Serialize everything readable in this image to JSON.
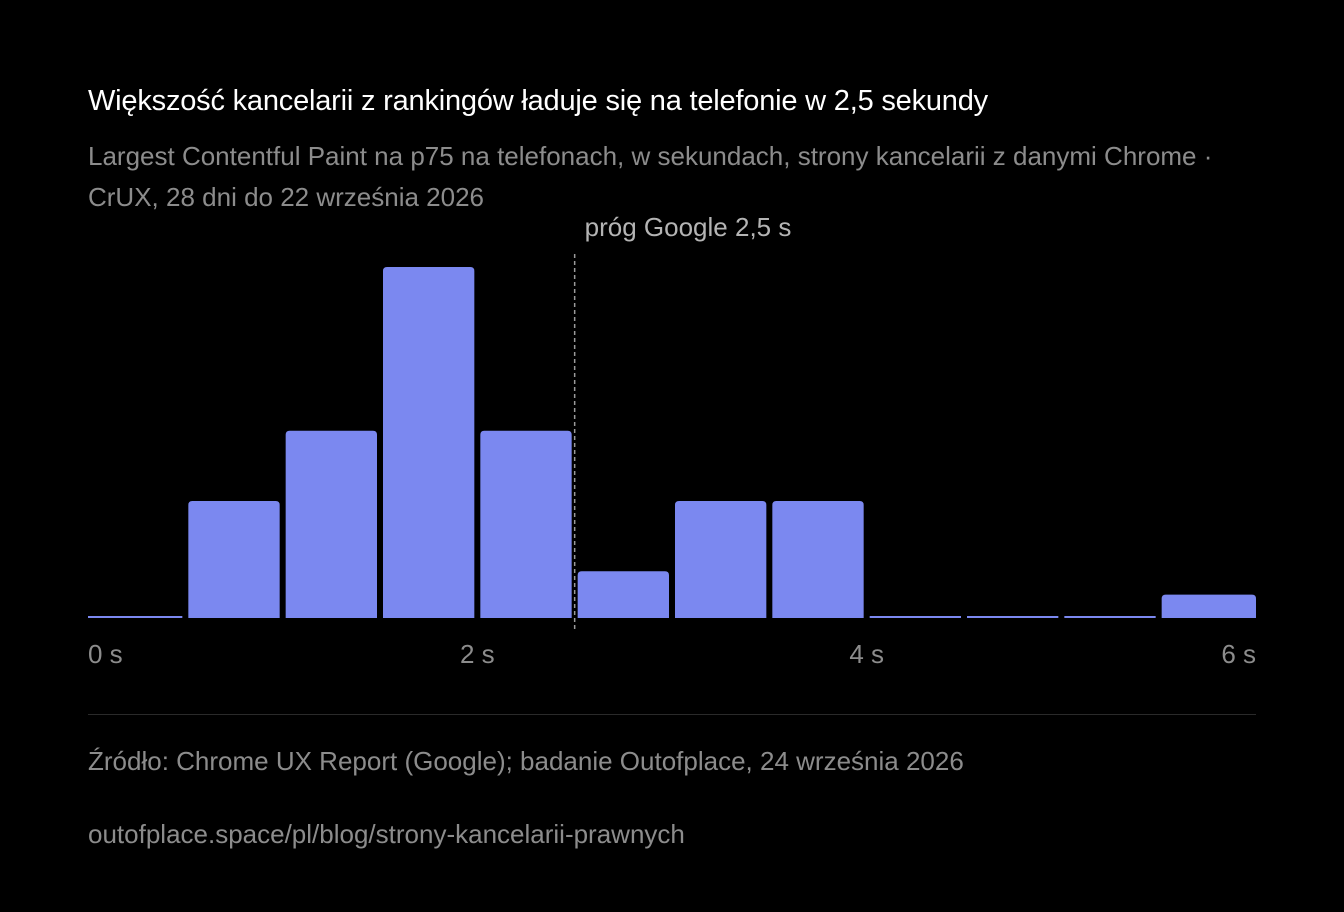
{
  "title": "Większość kancelarii z rankingów ładuje się na telefonie w 2,5 sekundy",
  "subtitle": "Largest Contentful Paint na p75 na telefonach, w sekundach, strony kancelarii z danymi Chrome · CrUX, 28 dni do 22 września 2026",
  "source": "Źródło: Chrome UX Report (Google); badanie Outofplace, 24 września 2026",
  "url": "outofplace.space/pl/blog/strony-kancelarii-prawnych",
  "colors": {
    "bar": "#7b88f0",
    "background": "#000000",
    "tick_text": "#8c8c8c",
    "threshold_line": "#9a9a9a"
  },
  "chart_data": {
    "type": "bar",
    "bin_width": 0.5,
    "bins": [
      [
        0.0,
        0.5
      ],
      [
        0.5,
        1.0
      ],
      [
        1.0,
        1.5
      ],
      [
        1.5,
        2.0
      ],
      [
        2.0,
        2.5
      ],
      [
        2.5,
        3.0
      ],
      [
        3.0,
        3.5
      ],
      [
        3.5,
        4.0
      ],
      [
        4.0,
        4.5
      ],
      [
        4.5,
        5.0
      ],
      [
        5.0,
        5.5
      ],
      [
        5.5,
        6.0
      ]
    ],
    "values": [
      0,
      5,
      8,
      15,
      8,
      2,
      5,
      5,
      0,
      0,
      0,
      1
    ],
    "xlim": [
      0,
      6
    ],
    "xticks": [
      {
        "value": 0,
        "label": "0 s"
      },
      {
        "value": 2,
        "label": "2 s"
      },
      {
        "value": 4,
        "label": "4 s"
      },
      {
        "value": 6,
        "label": "6 s"
      }
    ],
    "threshold": {
      "value": 2.5,
      "label": "próg Google 2,5 s"
    },
    "grid": false
  }
}
